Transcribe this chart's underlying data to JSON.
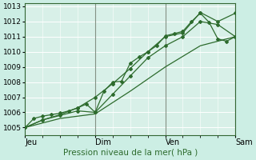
{
  "xlabel": "Pression niveau de la mer( hPa )",
  "bg_color": "#cceee4",
  "plot_bg_color": "#d8f0e8",
  "grid_color": "#ffffff",
  "line_color": "#2d6b2d",
  "vline_color": "#667766",
  "xlim": [
    0,
    72
  ],
  "ylim": [
    1004.5,
    1013.2
  ],
  "yticks": [
    1005,
    1006,
    1007,
    1008,
    1009,
    1010,
    1011,
    1012,
    1013
  ],
  "xtick_positions": [
    0,
    24,
    48,
    72
  ],
  "xtick_labels": [
    "Jeu",
    "Dim",
    "Ven",
    "Sam"
  ],
  "series": [
    [
      0,
      1005.0,
      3,
      1005.6,
      6,
      1005.75,
      9,
      1005.85,
      12,
      1005.95,
      15,
      1006.1,
      18,
      1006.3,
      21,
      1006.55,
      24,
      1006.0,
      27,
      1007.4,
      30,
      1008.0,
      33,
      1008.05,
      36,
      1009.25,
      39,
      1009.65,
      42,
      1010.0,
      45,
      1010.4,
      48,
      1011.05,
      51,
      1011.2,
      54,
      1011.35,
      57,
      1012.0,
      60,
      1012.55,
      63,
      1011.95,
      66,
      1010.85,
      69,
      1010.7,
      72,
      1011.0
    ],
    [
      0,
      1005.0,
      6,
      1005.5,
      12,
      1005.8,
      18,
      1006.1,
      24,
      1006.0,
      30,
      1007.2,
      36,
      1008.4,
      42,
      1009.6,
      48,
      1010.4,
      54,
      1011.0,
      60,
      1012.0,
      66,
      1011.8,
      72,
      1011.0
    ],
    [
      0,
      1005.0,
      6,
      1005.5,
      12,
      1005.85,
      18,
      1006.3,
      24,
      1007.0,
      30,
      1007.9,
      36,
      1008.9,
      42,
      1010.0,
      48,
      1011.0,
      54,
      1011.25,
      60,
      1012.6,
      66,
      1012.0,
      72,
      1012.55
    ],
    [
      0,
      1005.0,
      12,
      1005.6,
      24,
      1005.9,
      36,
      1007.4,
      48,
      1009.0,
      60,
      1010.4,
      72,
      1011.0
    ]
  ],
  "marker": "D",
  "markersize": 2.0,
  "linewidth": 0.9,
  "vline_positions": [
    24,
    48,
    72
  ]
}
